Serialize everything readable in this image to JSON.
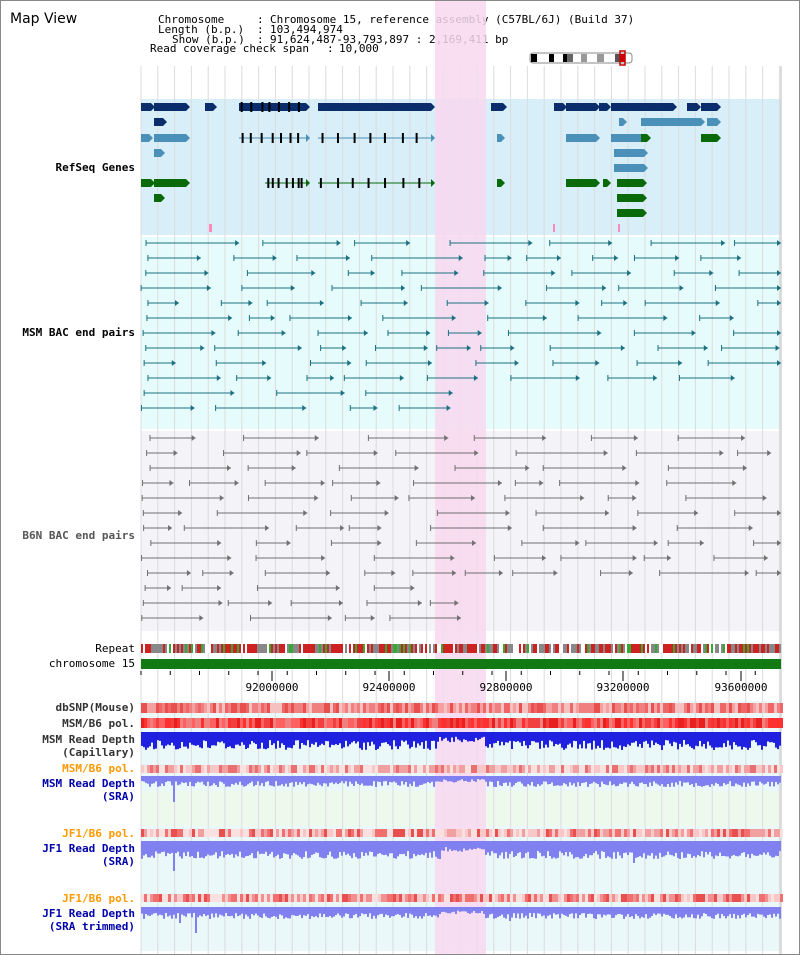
{
  "view": {
    "title": "Map View",
    "chromosome_label": "Chromosome",
    "chromosome_value": "Chromosome 15, reference assembly (C57BL/6J) (Build 37)",
    "length_label": "Length (b.p.)",
    "length_value": "103,494,974",
    "show_label": "Show (b.p.)",
    "show_value": "91,624,487-93,793,897 : 2,169,411 bp",
    "coverage_label": "Read coverage check span",
    "coverage_value": "10,000"
  },
  "tracks": {
    "refseq": "RefSeq Genes",
    "msm_bac": "MSM BAC end pairs",
    "b6n_bac": "B6N BAC end pairs",
    "repeat": "Repeat",
    "chromosome": "chromosome 15",
    "dbsnp": "dbSNP(Mouse)",
    "msm_pol": "MSM/B6 pol.",
    "msm_depth_cap": "MSM Read Depth\n(Capillary)",
    "msm_pol_2": "MSM/B6 pol.",
    "msm_depth_sra": "MSM Read Depth\n(SRA)",
    "jf1_pol": "JF1/B6 pol.",
    "jf1_depth_sra": "JF1 Read Depth\n(SRA)",
    "jf1_pol_2": "JF1/B6 pol.",
    "jf1_depth_trim": "JF1 Read Depth\n(SRA trimmed)"
  },
  "axis": {
    "ticks": [
      "92000000",
      "92400000",
      "92800000",
      "93200000",
      "93600000"
    ]
  },
  "colors": {
    "highlight": "#f8d8f0",
    "refseq_bg": "#d8eef8",
    "msm_bg": "#e6fbfb",
    "b6n_bg": "#f3f3f8",
    "gene_dark": "#0b2d6b",
    "gene_mid": "#4a90b8",
    "gene_green": "#0a6a0a",
    "msm_line": "#1a7080",
    "b6n_line": "#707070",
    "chrom_green": "#137a13",
    "label_refseq": "#000080",
    "label_msm": "#006060",
    "label_orange": "#ff9900",
    "label_blue": "#0000aa",
    "depth_blue": "#2020e0",
    "depth_light": "#8080f0"
  }
}
